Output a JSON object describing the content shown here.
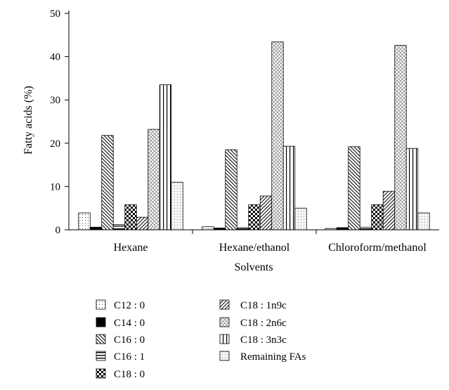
{
  "chart_data": {
    "type": "bar",
    "title": "",
    "xlabel": "Solvents",
    "ylabel": "Fatty acids (%)",
    "ylim": [
      0,
      50
    ],
    "yticks": [
      "0",
      "10",
      "20",
      "30",
      "40",
      "50"
    ],
    "grid": false,
    "legend_position": "bottom",
    "categories": [
      "Hexane",
      "Hexane/ethanol",
      "Chloroform/methanol"
    ],
    "series": [
      {
        "name": "C12 : 0",
        "pattern": "dots",
        "values": [
          3.9,
          0.7,
          0.3
        ]
      },
      {
        "name": "C14 : 0",
        "pattern": "solid",
        "values": [
          0.6,
          0.4,
          0.5
        ]
      },
      {
        "name": "C16 : 0",
        "pattern": "diag-down",
        "values": [
          21.8,
          18.5,
          19.2
        ]
      },
      {
        "name": "C16 : 1",
        "pattern": "horizontal",
        "values": [
          1.2,
          0.5,
          0.6
        ]
      },
      {
        "name": "C18 : 0",
        "pattern": "checker",
        "values": [
          5.8,
          5.8,
          5.8
        ]
      },
      {
        "name": "C18 : 1n9c",
        "pattern": "diag-up",
        "values": [
          2.9,
          7.8,
          8.9
        ]
      },
      {
        "name": "C18 : 2n6c",
        "pattern": "crosshatch",
        "values": [
          23.2,
          43.4,
          42.6
        ]
      },
      {
        "name": "C18 : 3n3c",
        "pattern": "vertical",
        "values": [
          33.5,
          19.3,
          18.8
        ]
      },
      {
        "name": "Remaining FAs",
        "pattern": "fine-grid",
        "values": [
          11.0,
          5.0,
          3.9
        ]
      }
    ]
  }
}
